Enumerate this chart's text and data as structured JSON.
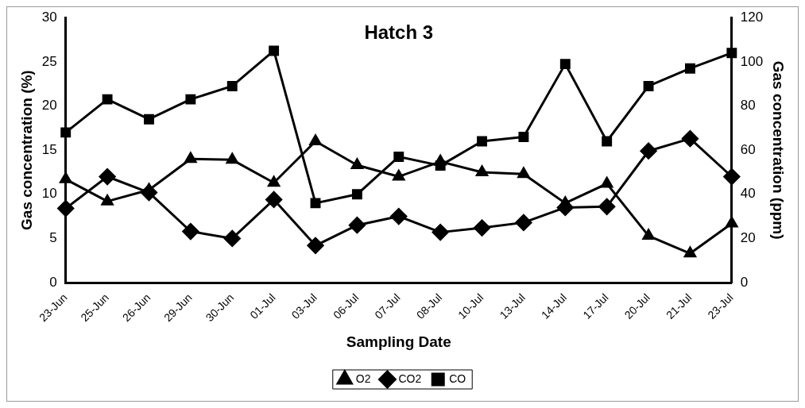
{
  "chart_data": {
    "type": "line",
    "title": "Hatch 3",
    "xlabel": "Sampling Date",
    "ylabel": "Gas concentration (%)",
    "y2label": "Gas concentration (ppm)",
    "categories": [
      "23-Jun",
      "25-Jun",
      "26-Jun",
      "29-Jun",
      "30-Jun",
      "01-Jul",
      "03-Jul",
      "06-Jul",
      "07-Jul",
      "08-Jul",
      "10-Jul",
      "13-Jul",
      "14-Jul",
      "17-Jul",
      "20-Jul",
      "21-Jul",
      "23-Jul"
    ],
    "series": [
      {
        "name": "O2",
        "color": "#000000",
        "marker": "triangle",
        "values": [
          11.7,
          9.2,
          10.5,
          14,
          13.9,
          11.3,
          16,
          13.3,
          12,
          13.7,
          12.5,
          12.3,
          9,
          11.2,
          5.3,
          3.3,
          6.7
        ]
      },
      {
        "name": "CO2",
        "color": "#000000",
        "marker": "diamond",
        "values": [
          8.4,
          12,
          10.2,
          5.8,
          5,
          9.4,
          4.2,
          6.5,
          7.5,
          5.7,
          6.2,
          6.8,
          8.5,
          8.6,
          14.9,
          16.3,
          12
        ]
      },
      {
        "name": "CO",
        "color": "#000000",
        "marker": "square",
        "axis": "y2",
        "values": [
          68,
          83,
          74,
          83,
          89,
          105,
          36,
          40,
          57,
          53,
          64,
          66,
          99,
          64,
          89,
          97,
          104
        ]
      }
    ],
    "ylim": [
      0,
      30
    ],
    "yticks": [
      0,
      5,
      10,
      15,
      20,
      25,
      30
    ],
    "y2lim": [
      0,
      120
    ],
    "y2ticks": [
      0,
      20,
      40,
      60,
      80,
      100,
      120
    ],
    "grid": false,
    "legend": "bottom",
    "line_style": "solid"
  }
}
